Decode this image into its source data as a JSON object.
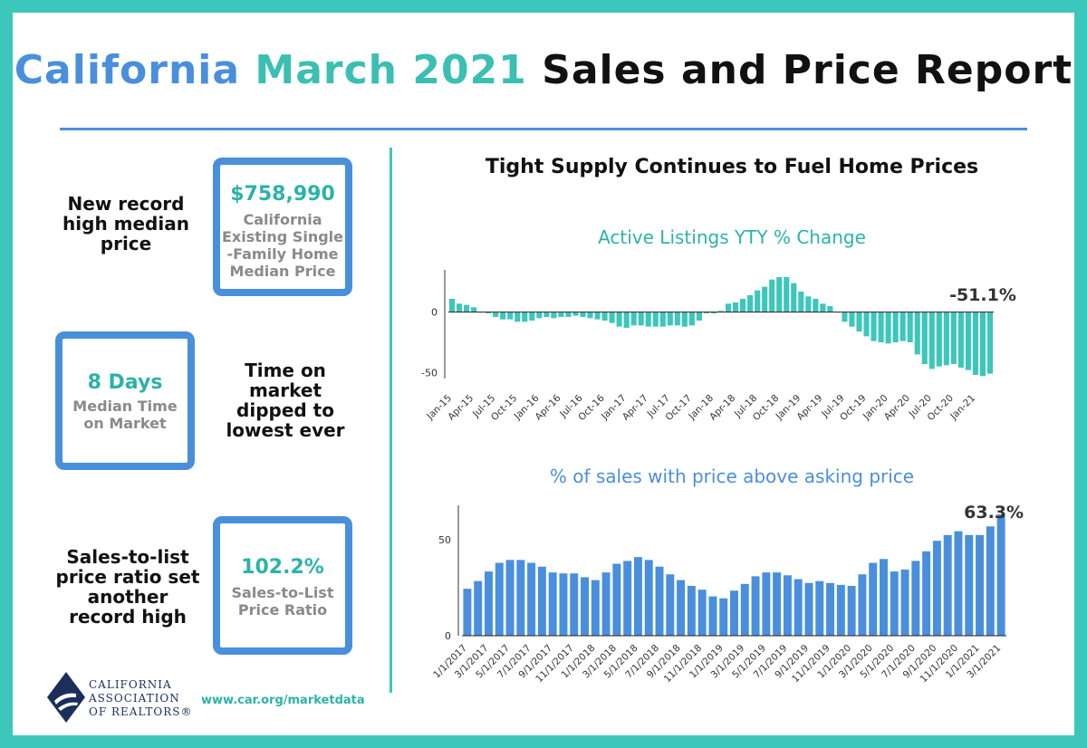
{
  "header": {
    "title_part1": "California",
    "title_part2": "March 2021",
    "title_part3": "Sales and Price Report"
  },
  "stats": {
    "median_price": {
      "side_text": [
        "New record",
        "high median",
        "price"
      ],
      "value": "$758,990",
      "label": [
        "California",
        "Existing Single",
        "-Family Home",
        "Median Price"
      ]
    },
    "days_on_market": {
      "side_text": [
        "Time on",
        "market",
        "dipped to",
        "lowest ever"
      ],
      "value": "8 Days",
      "label": [
        "Median Time",
        "on Market"
      ]
    },
    "sales_to_list": {
      "side_text": [
        "Sales-to-list",
        "price ratio set",
        "another",
        "record high"
      ],
      "value": "102.2%",
      "label": [
        "Sales-to-List",
        "Price Ratio"
      ]
    }
  },
  "main": {
    "subtitle": "Tight Supply Continues to Fuel Home Prices"
  },
  "footer": {
    "url": "www.car.org/marketdata",
    "logo_lines": [
      "CALIFORNIA",
      "ASSOCIATION",
      "OF REALTORS®"
    ]
  },
  "colors": {
    "teal": "#3cc7bb",
    "blue": "#4a8fdc",
    "bar_teal": "#3cc7bb",
    "bar_blue": "#4a8fdc"
  },
  "chart_data": [
    {
      "type": "bar",
      "title": "Active Listings YTY % Change",
      "ylim": [
        -55,
        35
      ],
      "yticks": [
        0,
        -50
      ],
      "tick_labels": [
        "Jan-15",
        "Apr-15",
        "Jul-15",
        "Oct-15",
        "Jan-16",
        "Apr-16",
        "Jul-16",
        "Oct-16",
        "Jan-17",
        "Apr-17",
        "Jul-17",
        "Oct-17",
        "Jan-18",
        "Apr-18",
        "Jul-18",
        "Oct-18",
        "Jan-19",
        "Apr-19",
        "Jul-19",
        "Oct-19",
        "Jan-20",
        "Apr-20",
        "Jul-20",
        "Oct-20",
        "Jan-21"
      ],
      "tick_every": 3,
      "values": [
        11,
        7,
        6,
        4,
        0,
        -1,
        -4,
        -6,
        -6,
        -8,
        -8,
        -7,
        -5,
        -4,
        -5,
        -4,
        -4,
        -3,
        -4,
        -5,
        -6,
        -7,
        -9,
        -12,
        -13,
        -11,
        -11,
        -12,
        -12,
        -12,
        -11,
        -11,
        -12,
        -11,
        -7,
        -1,
        -1,
        1,
        7,
        8,
        11,
        14,
        18,
        21,
        27,
        29,
        29,
        24,
        17,
        13,
        11,
        7,
        5,
        0,
        -8,
        -12,
        -16,
        -20,
        -24,
        -25,
        -26,
        -25,
        -24,
        -25,
        -35,
        -43,
        -47,
        -45,
        -44,
        -43,
        -46,
        -48,
        -52,
        -53,
        -51
      ],
      "annotation": "-51.1%"
    },
    {
      "type": "bar",
      "title": "% of sales with price above asking price",
      "ylim": [
        0,
        68
      ],
      "yticks": [
        0,
        50
      ],
      "tick_labels": [
        "1/1/2017",
        "3/1/2017",
        "5/1/2017",
        "7/1/2017",
        "9/1/2017",
        "11/1/2017",
        "1/1/2018",
        "3/1/2018",
        "5/1/2018",
        "7/1/2018",
        "9/1/2018",
        "11/1/2018",
        "1/1/2019",
        "3/1/2019",
        "5/1/2019",
        "7/1/2019",
        "9/1/2019",
        "11/1/2019",
        "1/1/2020",
        "3/1/2020",
        "5/1/2020",
        "7/1/2020",
        "9/1/2020",
        "11/1/2020",
        "1/1/2021",
        "3/1/2021"
      ],
      "tick_every": 2,
      "values": [
        24.5,
        28.5,
        33.5,
        38,
        39.5,
        39.5,
        38,
        36,
        33,
        32.5,
        32.5,
        30.5,
        29,
        33,
        37.5,
        39,
        41,
        39.5,
        36,
        32,
        29,
        26,
        24,
        20.5,
        19.5,
        23.5,
        27,
        31,
        33,
        33,
        31.5,
        29.5,
        27.5,
        28.5,
        27.5,
        26.5,
        26,
        32,
        38,
        40,
        33.5,
        34.5,
        39,
        44,
        49.5,
        52.5,
        54.5,
        52.5,
        52.5,
        57,
        63.3
      ],
      "annotation": "63.3%"
    }
  ]
}
